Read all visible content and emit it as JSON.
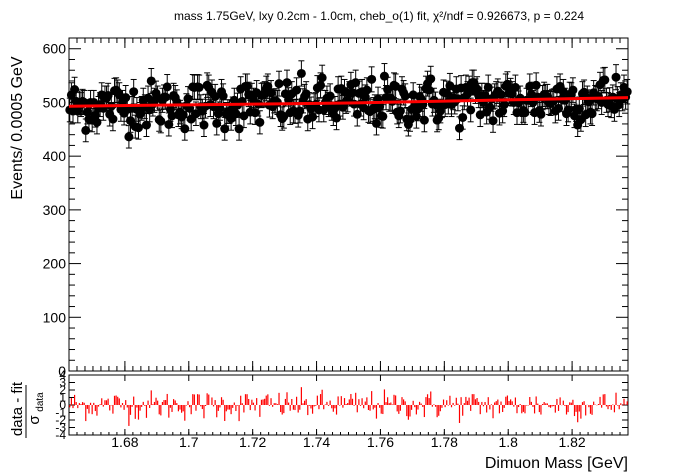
{
  "chart_data": [
    {
      "type": "scatter",
      "title": "mass 1.75GeV, lxy 0.2cm - 1.0cm, cheb_o(1) fit, χ²/ndf = 0.926673, p = 0.224",
      "xlabel": "Dimuon Mass [GeV]",
      "ylabel": "Events/ 0.0005 GeV",
      "xlim": [
        1.6625,
        1.8375
      ],
      "ylim": [
        0,
        620
      ],
      "x_ticks": [
        "1.68",
        "1.7",
        "1.72",
        "1.74",
        "1.76",
        "1.78",
        "1.8",
        "1.82"
      ],
      "y_ticks": [
        "0",
        "100",
        "200",
        "300",
        "400",
        "500",
        "600"
      ],
      "grid": false,
      "legend": "none",
      "bin_width": 0.0005,
      "fit_line": {
        "x": [
          1.6625,
          1.75,
          1.8375
        ],
        "y": [
          493,
          499,
          509
        ]
      },
      "colors": {
        "points": "#000000",
        "fit": "#ff0000",
        "residual": "#ff0000"
      }
    },
    {
      "type": "bar",
      "xlabel": "Dimuon Mass [GeV]",
      "ylabel": "data - fit / σ_data",
      "ylabel_numerator": "data - fit",
      "ylabel_denominator": "σ",
      "ylabel_subscript": "data",
      "ylim": [
        -4,
        4
      ],
      "y_ticks": [
        "4",
        "3",
        "2",
        "1",
        "0",
        "-1",
        "-2",
        "-3",
        "-4"
      ],
      "note": ""
    }
  ]
}
